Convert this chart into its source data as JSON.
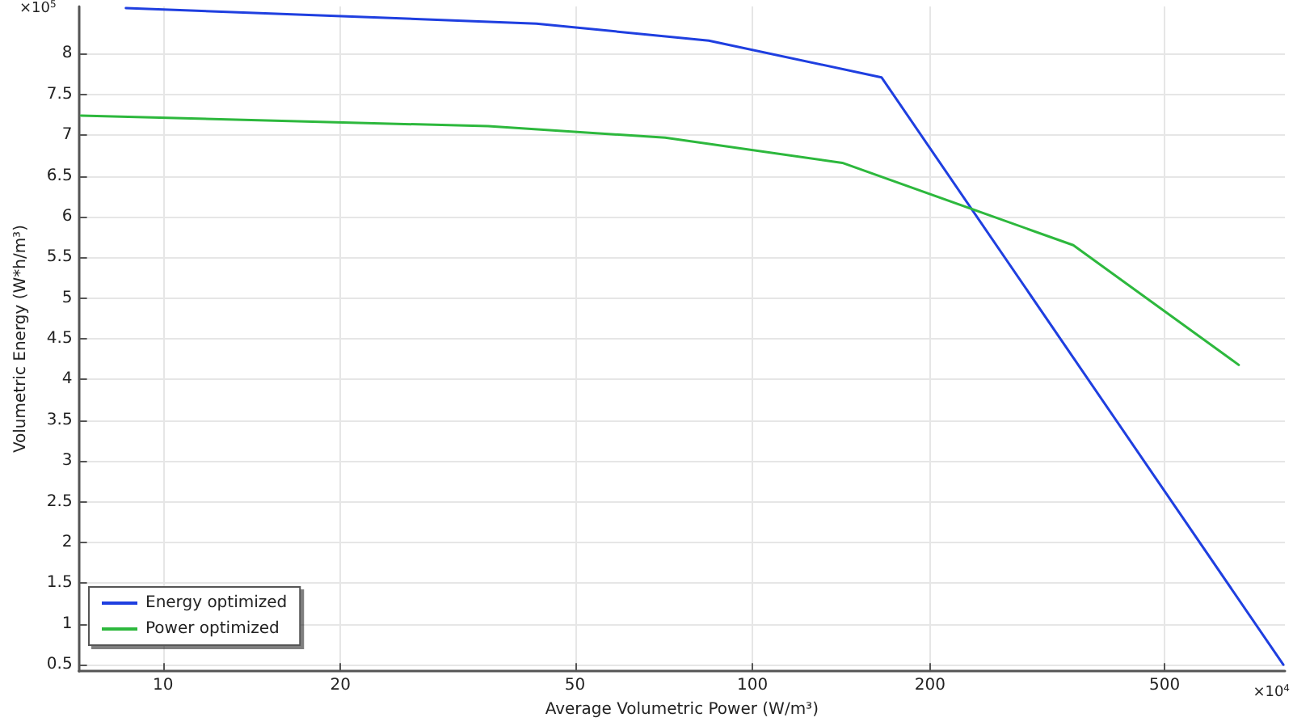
{
  "chart_data": {
    "type": "line",
    "xlabel": "Average Volumetric Power (W/m³)",
    "ylabel": "Volumetric Energy (W*h/m³)",
    "log": "x",
    "xlim": [
      7.2,
      800
    ],
    "xticks": [
      10,
      20,
      50,
      100,
      200,
      500
    ],
    "ylim": [
      0.42,
      8.58
    ],
    "yticks": [
      0.5,
      1,
      1.5,
      2,
      2.5,
      3,
      3.5,
      4,
      4.5,
      5,
      5.5,
      6,
      6.5,
      7,
      7.5,
      8
    ],
    "grid": true,
    "legend": "bottom left",
    "marker": "none",
    "line_style": "solid",
    "annotations": [
      "×10$^{5}$",
      "×10$^{4}$"
    ],
    "series": [
      {
        "name": "Energy optimized",
        "color": "#1f3fe0",
        "x": [
          8.65,
          43,
          84.3,
          165.5,
          795
        ],
        "values": [
          8.56,
          8.37,
          8.16,
          7.71,
          0.5
        ]
      },
      {
        "name": "Power optimized",
        "color": "#2db83d",
        "x": [
          7.26,
          35.6,
          71.1,
          142,
          350,
          668
        ],
        "values": [
          7.24,
          7.11,
          6.97,
          6.66,
          5.65,
          4.18
        ]
      }
    ]
  }
}
